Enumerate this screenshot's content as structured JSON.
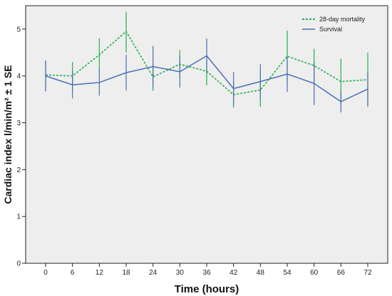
{
  "chart_data": {
    "type": "line",
    "xlabel": "Time (hours)",
    "ylabel": "Cardiac index l/min/m² ± 1 SE",
    "x": [
      0,
      6,
      12,
      18,
      24,
      30,
      36,
      42,
      48,
      54,
      60,
      66,
      72
    ],
    "ylim": [
      0,
      5.5
    ],
    "yticks": [
      0,
      1,
      2,
      3,
      4,
      5
    ],
    "grid": false,
    "legend_position": "top-right",
    "series": [
      {
        "name": "28-day mortality",
        "color": "#22b14c",
        "style": "dotted",
        "values": [
          4.02,
          4.0,
          4.45,
          4.95,
          3.98,
          4.25,
          4.1,
          3.6,
          3.7,
          4.42,
          4.22,
          3.88,
          3.92
        ],
        "upper": [
          4.33,
          4.3,
          4.8,
          5.37,
          4.28,
          4.55,
          4.4,
          3.88,
          4.06,
          4.97,
          4.58,
          4.37,
          4.5
        ],
        "lower": [
          3.7,
          3.7,
          4.1,
          4.5,
          3.68,
          3.95,
          3.8,
          3.32,
          3.34,
          3.87,
          3.86,
          3.39,
          3.34
        ]
      },
      {
        "name": "Survival",
        "color": "#4a6fb5",
        "style": "solid",
        "values": [
          4.0,
          3.81,
          3.86,
          4.07,
          4.2,
          4.09,
          4.43,
          3.73,
          3.88,
          4.04,
          3.84,
          3.45,
          3.72
        ],
        "upper": [
          4.33,
          4.1,
          4.14,
          4.45,
          4.64,
          4.43,
          4.8,
          4.08,
          4.25,
          4.42,
          4.3,
          3.68,
          4.08
        ],
        "lower": [
          3.67,
          3.52,
          3.58,
          3.69,
          3.76,
          3.75,
          4.06,
          3.38,
          3.51,
          3.66,
          3.38,
          3.22,
          3.36
        ]
      }
    ]
  }
}
